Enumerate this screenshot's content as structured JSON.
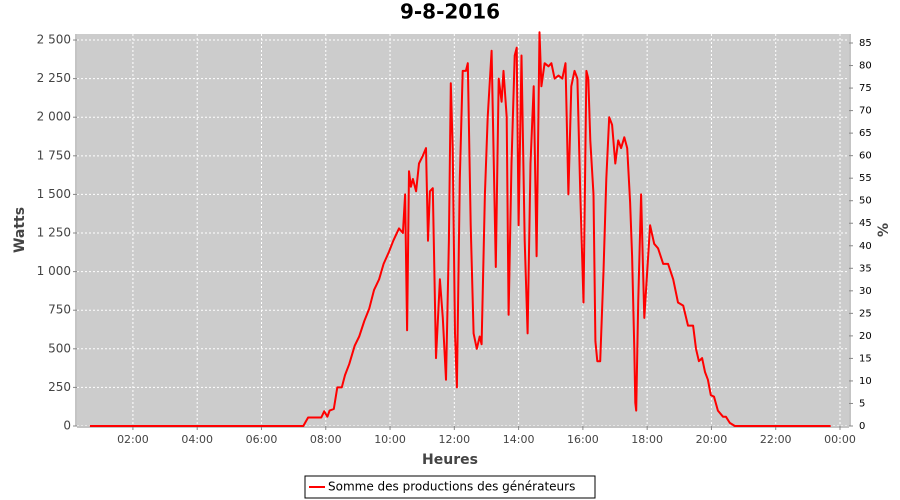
{
  "chart_data": {
    "type": "line",
    "title": "9-8-2016",
    "x_label": "Heures",
    "y_label": "Watts",
    "y2_label": "%",
    "grid": true,
    "legend": "bottom",
    "xlim": [
      0.26,
      24.28
    ],
    "xticks": [
      {
        "value": 2,
        "label": "02:00"
      },
      {
        "value": 4,
        "label": "04:00"
      },
      {
        "value": 6,
        "label": "06:00"
      },
      {
        "value": 8,
        "label": "08:00"
      },
      {
        "value": 10,
        "label": "10:00"
      },
      {
        "value": 12,
        "label": "12:00"
      },
      {
        "value": 14,
        "label": "14:00"
      },
      {
        "value": 16,
        "label": "16:00"
      },
      {
        "value": 18,
        "label": "18:00"
      },
      {
        "value": 20,
        "label": "20:00"
      },
      {
        "value": 22,
        "label": "22:00"
      },
      {
        "value": 24,
        "label": "00:00"
      }
    ],
    "ylim": [
      0,
      2539
    ],
    "yticks": [
      0,
      250,
      500,
      750,
      {
        "value": 1000,
        "label": "1 000"
      },
      {
        "value": 1250,
        "label": "1 250"
      },
      {
        "value": 1500,
        "label": "1 500"
      },
      {
        "value": 1750,
        "label": "1 750"
      },
      {
        "value": 2000,
        "label": "2 000"
      },
      {
        "value": 2250,
        "label": "2 250"
      },
      {
        "value": 2500,
        "label": "2 500"
      }
    ],
    "y2lim": [
      0,
      87
    ],
    "y2ticks": [
      0,
      5,
      10,
      15,
      20,
      25,
      30,
      35,
      40,
      45,
      50,
      55,
      60,
      65,
      70,
      75,
      80,
      85
    ],
    "x": [
      0.66,
      7.3,
      7.45,
      7.86,
      7.95,
      8.05,
      8.12,
      8.25,
      8.36,
      8.5,
      8.6,
      8.73,
      8.9,
      9.04,
      9.2,
      9.35,
      9.5,
      9.66,
      9.8,
      9.97,
      10.1,
      10.28,
      10.4,
      10.47,
      10.53,
      10.59,
      10.65,
      10.71,
      10.81,
      10.9,
      11.02,
      11.12,
      11.18,
      11.24,
      11.33,
      11.43,
      11.55,
      11.64,
      11.74,
      11.83,
      11.89,
      11.95,
      12.02,
      12.08,
      12.17,
      12.26,
      12.36,
      12.42,
      12.51,
      12.6,
      12.7,
      12.79,
      12.85,
      12.95,
      13.04,
      13.16,
      13.29,
      13.38,
      13.47,
      13.53,
      13.63,
      13.69,
      13.78,
      13.88,
      13.94,
      14.0,
      14.09,
      14.19,
      14.28,
      14.37,
      14.47,
      14.56,
      14.65,
      14.71,
      14.81,
      14.93,
      15.02,
      15.12,
      15.24,
      15.36,
      15.46,
      15.55,
      15.64,
      15.74,
      15.83,
      15.92,
      16.02,
      16.11,
      16.17,
      16.23,
      16.33,
      16.39,
      16.45,
      16.54,
      16.64,
      16.73,
      16.82,
      16.91,
      17.01,
      17.1,
      17.19,
      17.29,
      17.38,
      17.47,
      17.53,
      17.6,
      17.63,
      17.66,
      17.72,
      17.81,
      17.91,
      18.0,
      18.09,
      18.22,
      18.34,
      18.5,
      18.65,
      18.81,
      18.96,
      19.12,
      19.27,
      19.43,
      19.52,
      19.61,
      19.71,
      19.8,
      19.89,
      19.98,
      20.08,
      20.2,
      20.36,
      20.45,
      20.57,
      20.73,
      23.71
    ],
    "series": [
      {
        "name": "Somme des productions des  générateurs",
        "color": "#ff0000",
        "values": [
          0,
          0,
          55,
          55,
          95,
          60,
          100,
          110,
          250,
          250,
          330,
          400,
          520,
          580,
          680,
          760,
          880,
          950,
          1050,
          1130,
          1200,
          1280,
          1250,
          1500,
          620,
          1650,
          1550,
          1600,
          1520,
          1700,
          1750,
          1800,
          1200,
          1520,
          1540,
          440,
          950,
          700,
          300,
          1200,
          2220,
          1800,
          600,
          250,
          1600,
          2300,
          2300,
          2350,
          1300,
          600,
          500,
          580,
          530,
          1500,
          2000,
          2430,
          1030,
          2250,
          2100,
          2300,
          2000,
          720,
          1700,
          2400,
          2450,
          1300,
          2400,
          1200,
          600,
          1700,
          2200,
          1100,
          2550,
          2200,
          2350,
          2330,
          2350,
          2250,
          2270,
          2250,
          2350,
          1500,
          2200,
          2300,
          2250,
          1500,
          800,
          2300,
          2250,
          1850,
          1500,
          550,
          420,
          420,
          1000,
          1600,
          2000,
          1950,
          1700,
          1850,
          1800,
          1870,
          1800,
          1450,
          1100,
          500,
          150,
          100,
          800,
          1500,
          700,
          1000,
          1300,
          1180,
          1150,
          1050,
          1050,
          950,
          800,
          780,
          650,
          650,
          500,
          420,
          440,
          350,
          300,
          200,
          190,
          100,
          60,
          60,
          20,
          0,
          0
        ]
      }
    ]
  }
}
